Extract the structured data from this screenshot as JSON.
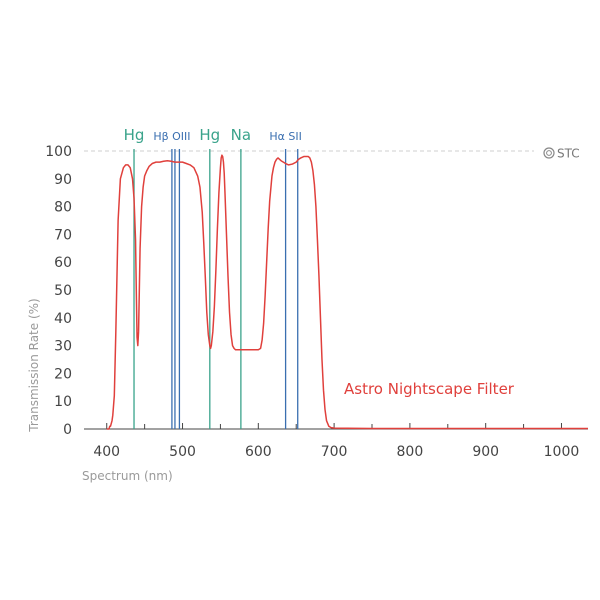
{
  "chart_data": {
    "type": "line",
    "title": "",
    "xlabel": "Spectrum (nm)",
    "ylabel": "Transmission Rate (%)",
    "xlim": [
      370,
      1035
    ],
    "ylim": [
      0,
      100
    ],
    "x_ticks": [
      400,
      500,
      600,
      700,
      800,
      900,
      1000
    ],
    "x_minor_ticks": [
      450,
      550,
      650,
      750,
      850,
      950
    ],
    "y_ticks": [
      0,
      10,
      20,
      30,
      40,
      50,
      60,
      70,
      80,
      90,
      100
    ],
    "grid": false,
    "brand": "STC",
    "series": [
      {
        "name": "Astro Nightscape Filter",
        "color": "#e0403c",
        "x": [
          400,
          403,
          404,
          405,
          406,
          407,
          408,
          410,
          412,
          415,
          418,
          422,
          425,
          428,
          431,
          434,
          436,
          438,
          439,
          440,
          441,
          442,
          443,
          444,
          446,
          448,
          450,
          453,
          456,
          460,
          465,
          470,
          475,
          480,
          485,
          490,
          495,
          500,
          505,
          510,
          515,
          520,
          523,
          526,
          528,
          530,
          532,
          534,
          536,
          537,
          538,
          540,
          542,
          544,
          546,
          548,
          550,
          551,
          552,
          553,
          554,
          555,
          556,
          558,
          560,
          562,
          564,
          566,
          568,
          570,
          575,
          580,
          585,
          590,
          595,
          600,
          603,
          605,
          607,
          609,
          611,
          613,
          615,
          618,
          620,
          622,
          624,
          626,
          628,
          630,
          633,
          636,
          640,
          645,
          650,
          653,
          656,
          660,
          663,
          666,
          668,
          670,
          672,
          674,
          676,
          678,
          680,
          682,
          684,
          686,
          688,
          690,
          693,
          696,
          700,
          750,
          800,
          850,
          900,
          950,
          1000,
          1035
        ],
        "y": [
          0,
          0,
          1,
          1,
          2,
          3,
          5,
          12,
          35,
          75,
          90,
          94,
          95,
          95,
          94,
          90,
          83,
          68,
          50,
          33,
          30,
          35,
          50,
          65,
          80,
          87,
          91,
          93,
          94.5,
          95.5,
          96,
          96,
          96.3,
          96.5,
          96.3,
          96,
          96,
          96,
          95.5,
          95,
          94,
          91,
          87,
          78,
          67,
          55,
          42,
          34,
          30,
          29,
          30,
          35,
          44,
          57,
          72,
          85,
          94,
          97.5,
          98.5,
          98,
          96,
          92,
          85,
          70,
          55,
          42,
          34,
          30,
          29,
          28.5,
          28.5,
          28.5,
          28.5,
          28.5,
          28.5,
          28.5,
          29,
          32,
          38,
          48,
          60,
          72,
          82,
          91,
          94,
          96,
          97,
          97.5,
          97,
          96.5,
          96,
          95.5,
          95,
          95.3,
          96,
          97,
          97.5,
          98,
          98,
          98,
          97.5,
          96,
          93,
          88,
          80,
          68,
          55,
          40,
          25,
          14,
          7,
          3,
          1,
          0.5,
          0.3,
          0.2,
          0.2,
          0.2,
          0.2,
          0.2,
          0.2,
          0.2
        ]
      }
    ],
    "emission_lines": [
      {
        "label": "Hg",
        "x": 436,
        "color": "#3aa38b",
        "label_color": "#3aa38b"
      },
      {
        "label": "Hβ OIII",
        "x": 486,
        "color": "#3a6fb0",
        "label_color": "#3a6fb0"
      },
      {
        "label": "",
        "x": 490,
        "color": "#3a6fb0",
        "label_color": "#3a6fb0"
      },
      {
        "label": "",
        "x": 495.9,
        "color": "#3a6fb0",
        "label_color": "#3a6fb0"
      },
      {
        "label": "Hg",
        "x": 536,
        "color": "#3aa38b",
        "label_color": "#3aa38b"
      },
      {
        "label": "Na",
        "x": 577,
        "color": "#3aa38b",
        "label_color": "#3aa38b"
      },
      {
        "label": "Hα SII",
        "x": 636,
        "color": "#3a6fb0",
        "label_color": "#3a6fb0"
      },
      {
        "label": "",
        "x": 652,
        "color": "#3a6fb0",
        "label_color": "#3a6fb0"
      }
    ]
  }
}
